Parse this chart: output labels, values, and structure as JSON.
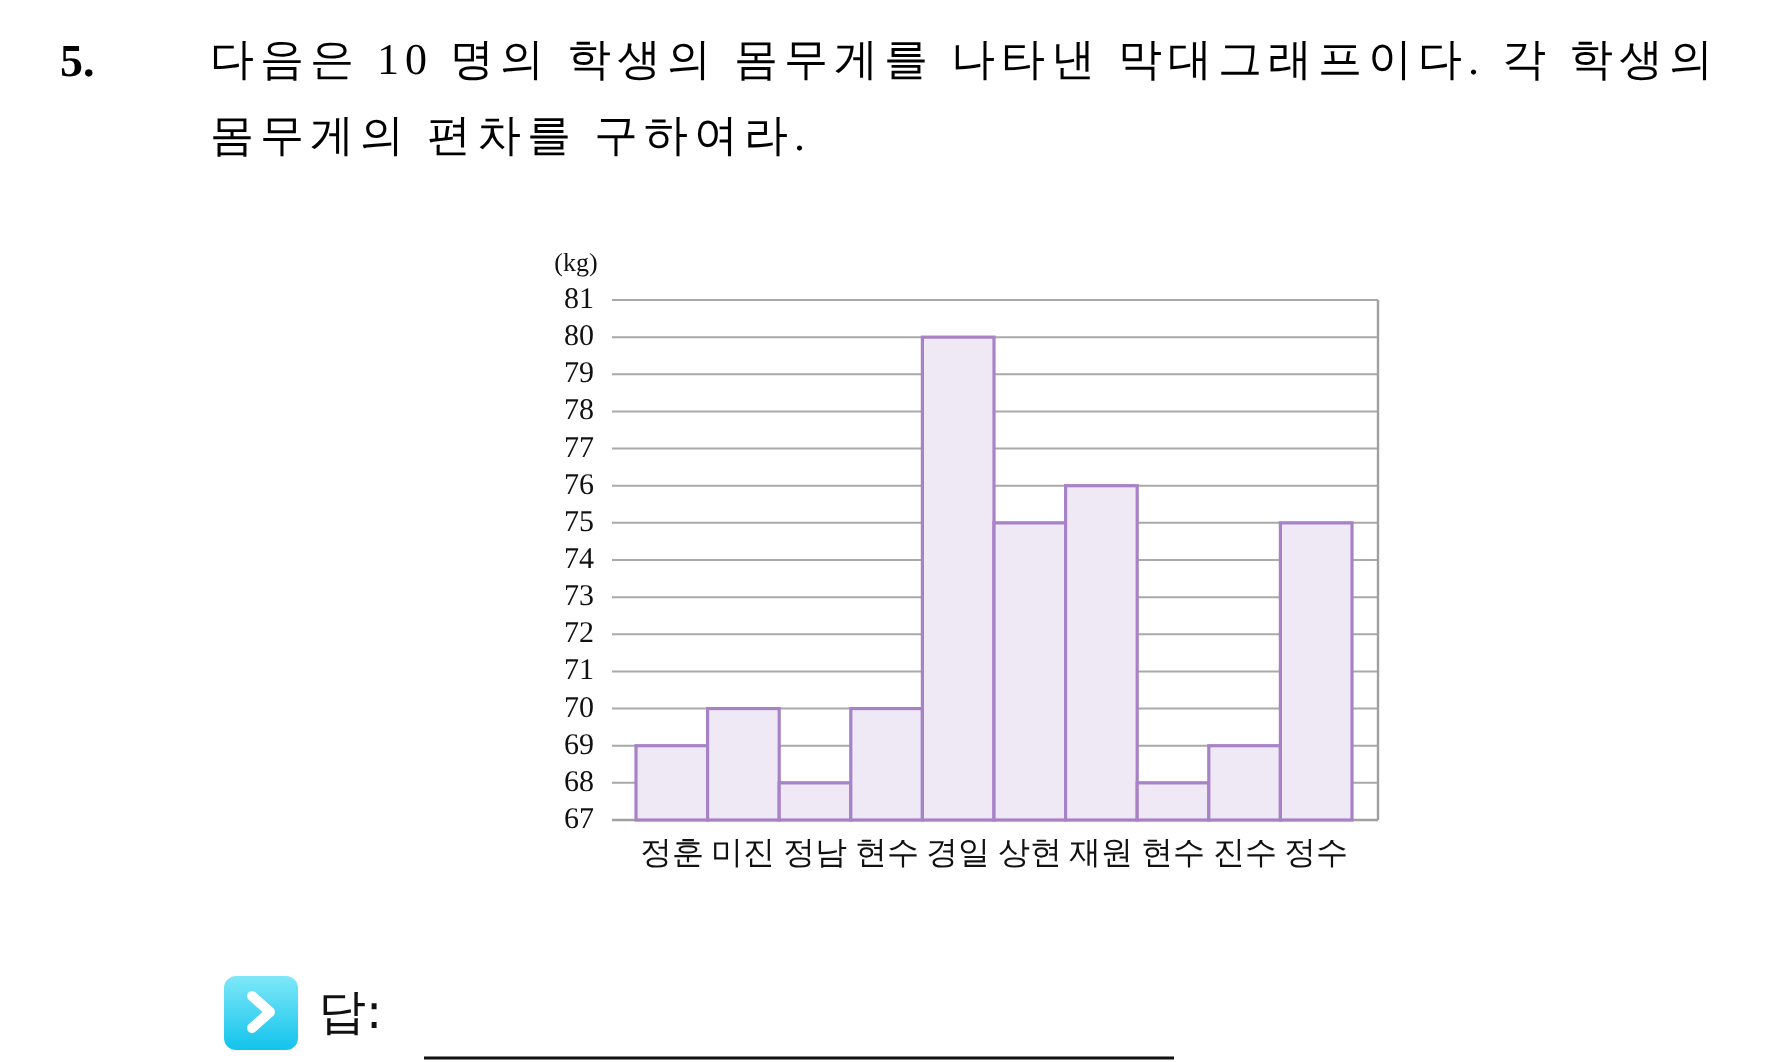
{
  "chart_data": {
    "type": "bar",
    "title": "5.",
    "subtitle": "다음은 10 명의 학생의 몸무게를 나타낸 막대그래프이다. 각 학생의 몸무게의 편차를 구하여라.",
    "ylabel": "(kg)",
    "categories": [
      "정훈",
      "미진",
      "정남",
      "현수",
      "경일",
      "상현",
      "재원",
      "현수",
      "진수",
      "정수"
    ],
    "values": [
      69,
      70,
      68,
      70,
      80,
      75,
      76,
      68,
      69,
      75
    ],
    "color": "#efe9f5",
    "ylim": [
      67,
      81
    ],
    "yticks": [
      67,
      68,
      69,
      70,
      71,
      72,
      73,
      74,
      75,
      76,
      77,
      78,
      79,
      80,
      81
    ],
    "grid": "y",
    "annotations": [
      "답:"
    ]
  }
}
